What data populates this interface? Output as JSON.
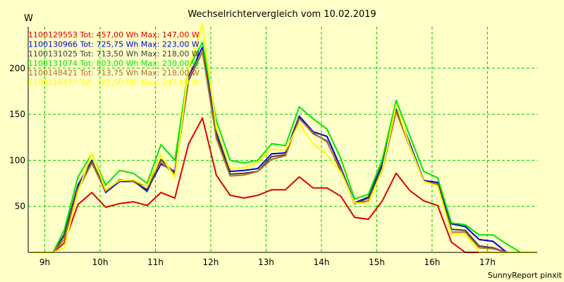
{
  "colors": {
    "background": "#ffffc8",
    "grid": "#00c800",
    "axis": "#000000"
  },
  "chart_data": {
    "type": "line",
    "title": "Wechselrichtervergleich vom 10.02.2019",
    "ylabel": "W",
    "xlabel": "",
    "footer": "SunnyReport pinxit",
    "ylim": [
      0,
      245
    ],
    "xlim": [
      8.7,
      17.9
    ],
    "yticks": [
      50,
      100,
      150,
      200
    ],
    "xticks": [
      9,
      10,
      11,
      12,
      13,
      14,
      15,
      16,
      17
    ],
    "xtick_labels": [
      "9h",
      "10h",
      "11h",
      "12h",
      "13h",
      "14h",
      "15h",
      "16h",
      "17h"
    ],
    "grid": true,
    "x": [
      8.75,
      9.0,
      9.15,
      9.35,
      9.6,
      9.85,
      10.1,
      10.35,
      10.6,
      10.85,
      11.1,
      11.35,
      11.6,
      11.85,
      12.1,
      12.35,
      12.6,
      12.85,
      13.1,
      13.35,
      13.6,
      13.85,
      14.1,
      14.35,
      14.6,
      14.85,
      15.1,
      15.35,
      15.6,
      15.85,
      16.1,
      16.35,
      16.6,
      16.85,
      17.1,
      17.35,
      17.6,
      17.85
    ],
    "series": [
      {
        "name": "1100129553",
        "legend": "1100129553 Tot: 457,00 Wh Max: 147,00 W",
        "color": "#dc0000",
        "values": [
          0,
          0,
          0,
          10,
          52,
          65,
          49,
          53,
          55,
          51,
          65,
          59,
          118,
          146,
          84,
          62,
          59,
          62,
          68,
          68,
          82,
          70,
          70,
          61,
          38,
          36,
          56,
          86,
          67,
          56,
          51,
          11,
          0,
          0,
          0,
          0,
          0,
          0
        ]
      },
      {
        "name": "1100130966",
        "legend": "1100130966 Tot: 725,75 Wh Max: 223,00 W",
        "color": "#0000dc",
        "values": [
          0,
          0,
          0,
          19,
          73,
          100,
          65,
          77,
          77,
          68,
          96,
          88,
          191,
          223,
          131,
          88,
          89,
          91,
          107,
          108,
          148,
          131,
          126,
          92,
          54,
          60,
          96,
          156,
          118,
          78,
          76,
          31,
          28,
          14,
          12,
          0,
          0,
          0
        ]
      },
      {
        "name": "1100131025",
        "legend": "1100131025 Tot: 713,50 Wh Max: 218,00 W",
        "color": "#404040",
        "values": [
          0,
          0,
          0,
          18,
          71,
          99,
          68,
          78,
          78,
          66,
          101,
          86,
          187,
          218,
          126,
          85,
          86,
          88,
          104,
          106,
          146,
          129,
          121,
          88,
          53,
          59,
          93,
          153,
          115,
          77,
          74,
          25,
          24,
          7,
          5,
          0,
          0,
          0
        ]
      },
      {
        "name": "1100131074",
        "legend": "1100131074 Tot: 803,00 Wh Max: 230,00 W",
        "color": "#00e600",
        "values": [
          0,
          0,
          0,
          24,
          82,
          107,
          73,
          89,
          86,
          75,
          117,
          100,
          200,
          228,
          143,
          100,
          97,
          100,
          118,
          116,
          158,
          145,
          134,
          102,
          58,
          63,
          101,
          165,
          126,
          88,
          81,
          32,
          30,
          19,
          19,
          9,
          0,
          0
        ]
      },
      {
        "name": "1100148421",
        "legend": "1100148421 Tot: 713,75 Wh Max: 218,00 W",
        "color": "#b46e28",
        "values": [
          0,
          0,
          0,
          14,
          68,
          97,
          66,
          79,
          77,
          72,
          98,
          85,
          189,
          218,
          124,
          83,
          84,
          88,
          101,
          105,
          145,
          130,
          120,
          90,
          53,
          56,
          89,
          153,
          114,
          77,
          74,
          22,
          22,
          5,
          4,
          0,
          0,
          0
        ]
      },
      {
        "name": "1100116477",
        "legend": "1100116477 Tot: 721,50 Wh Max: 247,00 W",
        "color": "#ffff00",
        "values": [
          0,
          0,
          0,
          5,
          66,
          108,
          68,
          78,
          79,
          72,
          106,
          81,
          200,
          247,
          135,
          91,
          92,
          98,
          112,
          111,
          140,
          118,
          106,
          87,
          54,
          53,
          90,
          160,
          115,
          77,
          72,
          20,
          20,
          0,
          0,
          0,
          0,
          0
        ]
      }
    ]
  }
}
